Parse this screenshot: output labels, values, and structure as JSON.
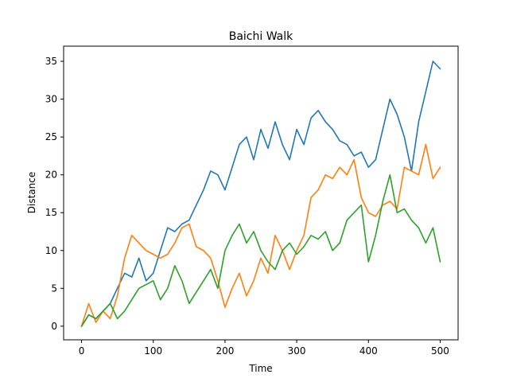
{
  "chart_data": {
    "type": "line",
    "title": "Baichi Walk",
    "xlabel": "Time",
    "ylabel": "Distance",
    "xlim": [
      -25,
      525
    ],
    "ylim": [
      -1.8,
      37.0
    ],
    "xticks": [
      0,
      100,
      200,
      300,
      400,
      500
    ],
    "yticks": [
      0,
      5,
      10,
      15,
      20,
      25,
      30,
      35
    ],
    "grid": false,
    "legend": "none",
    "series": [
      {
        "color": "#1f77b4",
        "x": [
          0,
          10,
          20,
          30,
          40,
          50,
          60,
          70,
          80,
          90,
          100,
          110,
          120,
          130,
          140,
          150,
          160,
          170,
          180,
          190,
          200,
          210,
          220,
          230,
          240,
          250,
          260,
          270,
          280,
          290,
          300,
          310,
          320,
          330,
          340,
          350,
          360,
          370,
          380,
          390,
          400,
          410,
          420,
          430,
          440,
          450,
          460,
          470,
          480,
          490,
          500
        ],
        "values": [
          0,
          1.5,
          1,
          2,
          3,
          5,
          7,
          6.5,
          9,
          6,
          7,
          10,
          13,
          12.5,
          13.5,
          14,
          16,
          18,
          20.5,
          20,
          18,
          21,
          24,
          25,
          22,
          26,
          23.5,
          27,
          24,
          22,
          26,
          24,
          27.5,
          28.5,
          27,
          26,
          24.5,
          24,
          22.5,
          23,
          21,
          22,
          26,
          30,
          28,
          25,
          20.5,
          27,
          31,
          35,
          34
        ]
      },
      {
        "color": "#ff7f0e",
        "x": [
          0,
          10,
          20,
          30,
          40,
          50,
          60,
          70,
          80,
          90,
          100,
          110,
          120,
          130,
          140,
          150,
          160,
          170,
          180,
          190,
          200,
          210,
          220,
          230,
          240,
          250,
          260,
          270,
          280,
          290,
          300,
          310,
          320,
          330,
          340,
          350,
          360,
          370,
          380,
          390,
          400,
          410,
          420,
          430,
          440,
          450,
          460,
          470,
          480,
          490,
          500
        ],
        "values": [
          0,
          3,
          0.5,
          2,
          1,
          4,
          9,
          12,
          11,
          10,
          9.5,
          9,
          9.5,
          11,
          13,
          13.5,
          10.5,
          10,
          9,
          6,
          2.5,
          5,
          7,
          4,
          6,
          9,
          7,
          12,
          10,
          7.5,
          10,
          12,
          17,
          18,
          20,
          19.5,
          21,
          20,
          22,
          17,
          15,
          14.5,
          16,
          16.5,
          15.5,
          21,
          20.5,
          20,
          24,
          19.5,
          21
        ]
      },
      {
        "color": "#2ca02c",
        "x": [
          0,
          10,
          20,
          30,
          40,
          50,
          60,
          70,
          80,
          90,
          100,
          110,
          120,
          130,
          140,
          150,
          160,
          170,
          180,
          190,
          200,
          210,
          220,
          230,
          240,
          250,
          260,
          270,
          280,
          290,
          300,
          310,
          320,
          330,
          340,
          350,
          360,
          370,
          380,
          390,
          400,
          410,
          420,
          430,
          440,
          450,
          460,
          470,
          480,
          490,
          500
        ],
        "values": [
          0,
          1.5,
          1,
          2,
          3,
          1,
          2,
          3.5,
          5,
          5.5,
          6,
          3.5,
          5,
          8,
          6,
          3,
          4.5,
          6,
          7.5,
          5,
          10,
          12,
          13.5,
          11,
          12.5,
          10,
          8.5,
          7.5,
          10,
          11,
          9.5,
          10.5,
          12,
          11.5,
          12.5,
          10,
          11,
          14,
          15,
          16,
          8.5,
          12,
          16.5,
          20,
          15,
          15.5,
          14,
          13,
          11,
          13,
          8.5
        ]
      }
    ]
  }
}
